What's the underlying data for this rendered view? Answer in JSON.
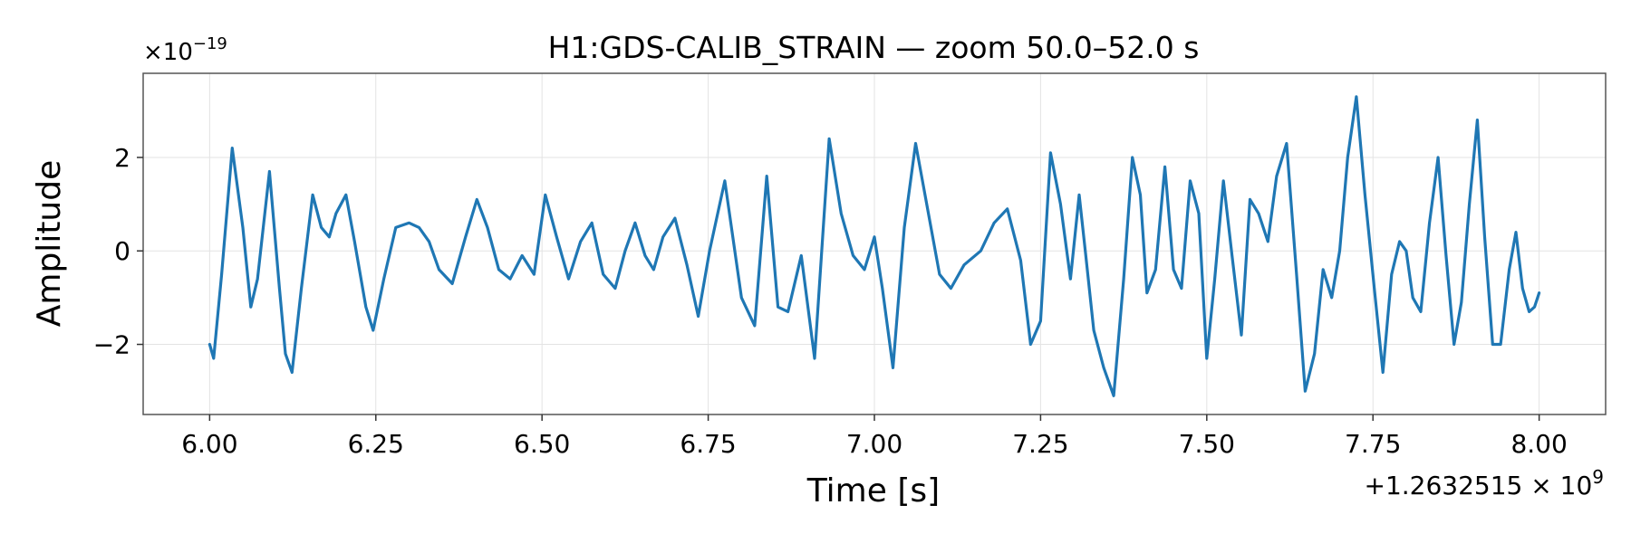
{
  "chart_data": {
    "type": "line",
    "title": "H1:GDS-CALIB_STRAIN — zoom 50.0–52.0 s",
    "xlabel": "Time [s]",
    "ylabel": "Amplitude",
    "y_scale_label": "×10",
    "y_scale_exponent": "−19",
    "x_offset_label": "+1.2632515 × 10",
    "x_offset_exponent": "9",
    "xlim": [
      5.9,
      8.1
    ],
    "ylim": [
      -3.5,
      3.8
    ],
    "grid": true,
    "x_ticks": [
      6.0,
      6.25,
      6.5,
      6.75,
      7.0,
      7.25,
      7.5,
      7.75,
      8.0
    ],
    "x_tick_labels": [
      "6.00",
      "6.25",
      "6.50",
      "6.75",
      "7.00",
      "7.25",
      "7.50",
      "7.75",
      "8.00"
    ],
    "y_ticks": [
      -2,
      0,
      2
    ],
    "y_tick_labels": [
      "−2",
      "0",
      "2"
    ],
    "series": [
      {
        "color": "#1f77b4",
        "x": [
          6.0,
          6.006,
          6.018,
          6.034,
          6.05,
          6.062,
          6.072,
          6.09,
          6.105,
          6.114,
          6.124,
          6.138,
          6.155,
          6.168,
          6.18,
          6.19,
          6.205,
          6.218,
          6.235,
          6.246,
          6.262,
          6.28,
          6.3,
          6.315,
          6.33,
          6.345,
          6.365,
          6.385,
          6.402,
          6.418,
          6.435,
          6.452,
          6.47,
          6.488,
          6.505,
          6.522,
          6.54,
          6.558,
          6.575,
          6.592,
          6.61,
          6.625,
          6.64,
          6.655,
          6.668,
          6.682,
          6.7,
          6.718,
          6.735,
          6.752,
          6.775,
          6.8,
          6.82,
          6.838,
          6.855,
          6.87,
          6.89,
          6.91,
          6.932,
          6.95,
          6.968,
          6.985,
          7.0,
          7.012,
          7.028,
          7.045,
          7.062,
          7.08,
          7.098,
          7.115,
          7.135,
          7.16,
          7.18,
          7.2,
          7.22,
          7.235,
          7.25,
          7.265,
          7.28,
          7.295,
          7.308,
          7.318,
          7.33,
          7.345,
          7.36,
          7.375,
          7.388,
          7.4,
          7.41,
          7.423,
          7.437,
          7.45,
          7.462,
          7.475,
          7.488,
          7.5,
          7.512,
          7.525,
          7.538,
          7.552,
          7.565,
          7.578,
          7.592,
          7.605,
          7.62,
          7.635,
          7.648,
          7.662,
          7.675,
          7.688,
          7.7,
          7.712,
          7.725,
          7.738,
          7.752,
          7.765,
          7.778,
          7.79,
          7.8,
          7.81,
          7.822,
          7.835,
          7.848,
          7.86,
          7.872,
          7.883,
          7.895,
          7.907,
          7.918,
          7.93,
          7.942,
          7.955,
          7.965,
          7.975,
          7.985,
          7.993,
          8.0
        ],
        "y": [
          -2.0,
          -2.3,
          -0.5,
          2.2,
          0.5,
          -1.2,
          -0.6,
          1.7,
          -0.8,
          -2.2,
          -2.6,
          -0.8,
          1.2,
          0.5,
          0.3,
          0.8,
          1.2,
          0.2,
          -1.2,
          -1.7,
          -0.6,
          0.5,
          0.6,
          0.5,
          0.2,
          -0.4,
          -0.7,
          0.3,
          1.1,
          0.5,
          -0.4,
          -0.6,
          -0.1,
          -0.5,
          1.2,
          0.3,
          -0.6,
          0.2,
          0.6,
          -0.5,
          -0.8,
          0.0,
          0.6,
          -0.1,
          -0.4,
          0.3,
          0.7,
          -0.3,
          -1.4,
          0.0,
          1.5,
          -1.0,
          -1.6,
          1.6,
          -1.2,
          -1.3,
          -0.1,
          -2.3,
          2.4,
          0.8,
          -0.1,
          -0.4,
          0.3,
          -0.8,
          -2.5,
          0.5,
          2.3,
          0.9,
          -0.5,
          -0.8,
          -0.3,
          0.0,
          0.6,
          0.9,
          -0.2,
          -2.0,
          -1.5,
          2.1,
          1.0,
          -0.6,
          1.2,
          -0.1,
          -1.7,
          -2.5,
          -3.1,
          -0.6,
          2.0,
          1.2,
          -0.9,
          -0.4,
          1.8,
          -0.4,
          -0.8,
          1.5,
          0.8,
          -2.3,
          -0.6,
          1.5,
          -0.1,
          -1.8,
          1.1,
          0.8,
          0.2,
          1.6,
          2.3,
          -0.5,
          -3.0,
          -2.2,
          -0.4,
          -1.0,
          0.0,
          2.0,
          3.3,
          1.2,
          -0.8,
          -2.6,
          -0.5,
          0.2,
          0.0,
          -1.0,
          -1.3,
          0.6,
          2.0,
          -0.1,
          -2.0,
          -1.1,
          1.0,
          2.8,
          0.3,
          -2.0,
          -2.0,
          -0.4,
          0.4,
          -0.8,
          -1.3,
          -1.2,
          -0.9
        ]
      }
    ]
  }
}
